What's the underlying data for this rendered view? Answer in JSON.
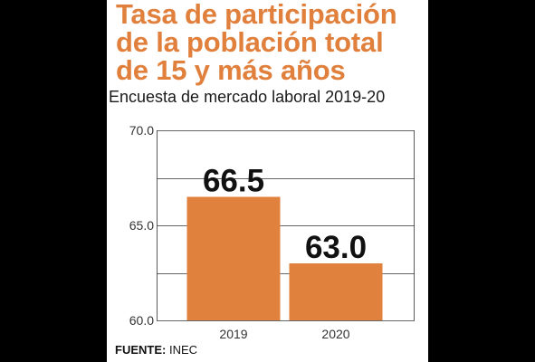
{
  "title_lines": [
    "Tasa de participación",
    "de la población total",
    "de 15 y más años"
  ],
  "subtitle": "Encuesta de mercado laboral 2019-20",
  "source": {
    "label": "FUENTE:",
    "value": "INEC"
  },
  "colors": {
    "accent": "#e0803c",
    "bar": "#e0823e",
    "axis_text": "#333333",
    "grid": "#333333",
    "value_label": "#111111"
  },
  "chart_data": {
    "type": "bar",
    "categories": [
      "2019",
      "2020"
    ],
    "values": [
      66.5,
      63.0
    ],
    "value_labels": [
      "66.5",
      "63.0"
    ],
    "title": "Tasa de participación de la población total de 15 y más años",
    "subtitle": "Encuesta de mercado laboral 2019-20",
    "xlabel": "",
    "ylabel": "",
    "ylim": [
      60.0,
      70.0
    ],
    "y_ticks": [
      "60.0",
      "65.0",
      "70.0"
    ],
    "grid": true
  }
}
